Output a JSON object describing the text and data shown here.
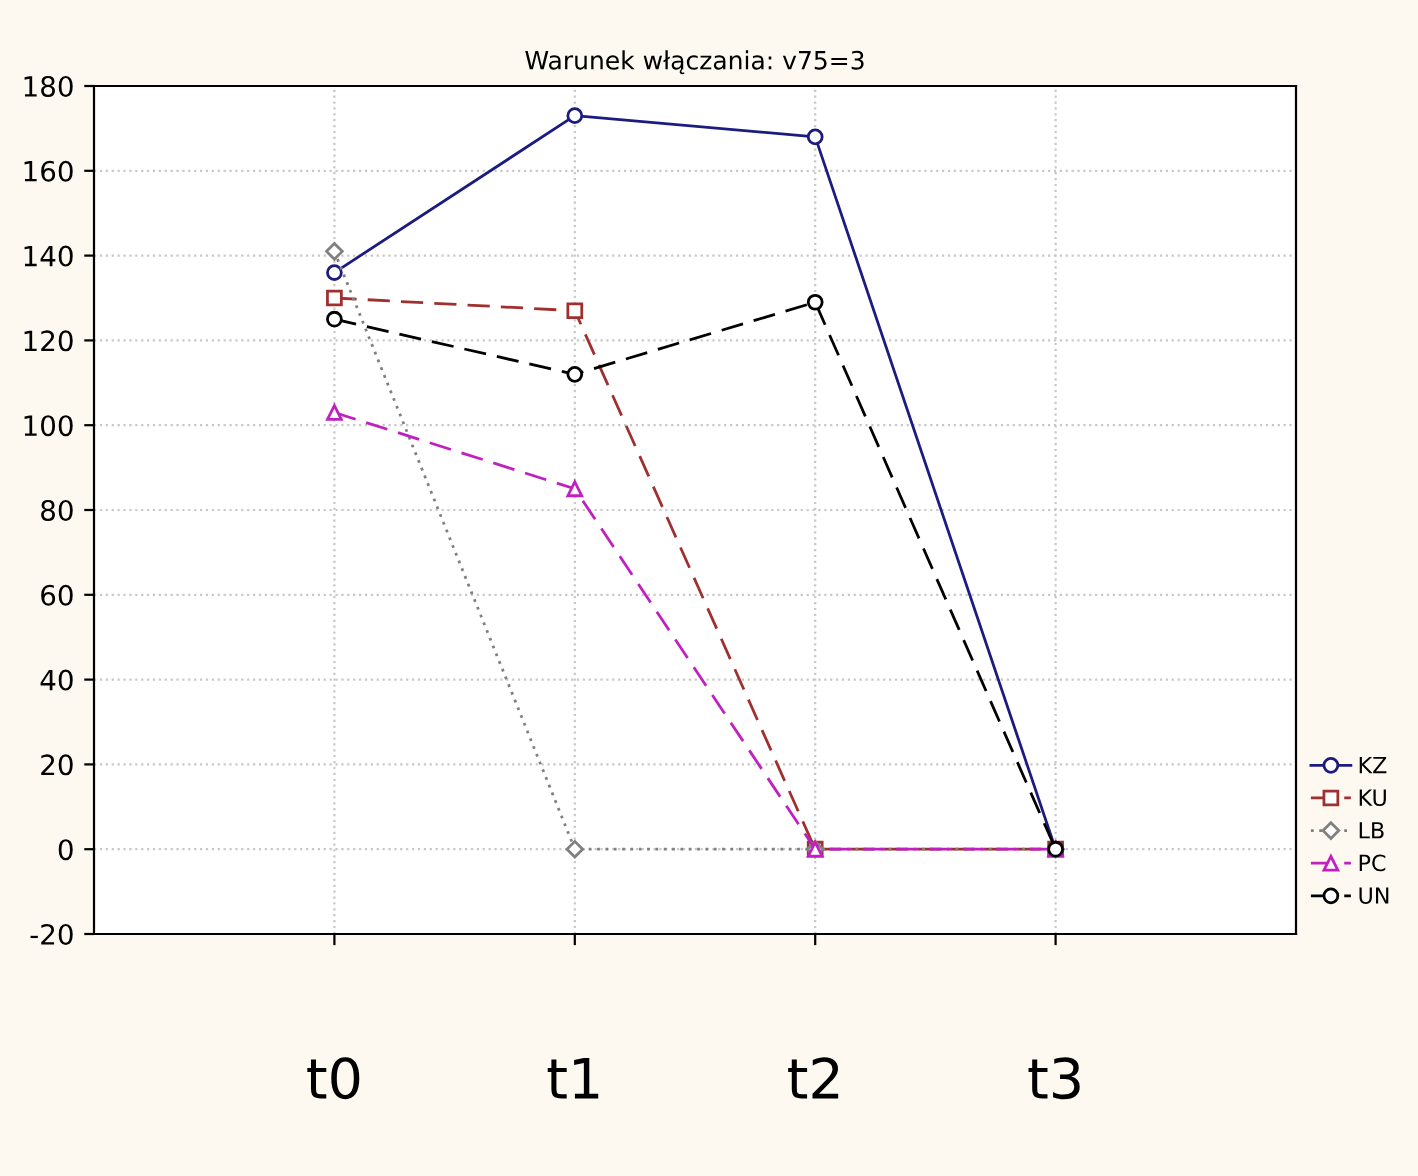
{
  "chart_data": {
    "type": "line",
    "title": "Warunek włączania: v75=3",
    "categories": [
      "t0",
      "t1",
      "t2",
      "t3"
    ],
    "series": [
      {
        "name": "KZ",
        "color": "#1c1c80",
        "values": [
          136,
          173,
          168,
          0
        ],
        "marker": "circle",
        "line_style": "solid"
      },
      {
        "name": "KU",
        "color": "#a03030",
        "values": [
          130,
          127,
          0,
          0
        ],
        "marker": "square",
        "line_style": "dashed"
      },
      {
        "name": "LB",
        "color": "#808080",
        "values": [
          141,
          0,
          0,
          0
        ],
        "marker": "diamond",
        "line_style": "dotted"
      },
      {
        "name": "PC",
        "color": "#c020c0",
        "values": [
          103,
          85,
          0,
          0
        ],
        "marker": "triangle",
        "line_style": "dashed"
      },
      {
        "name": "UN",
        "color": "#000000",
        "values": [
          125,
          112,
          129,
          0
        ],
        "marker": "circle",
        "line_style": "dashed"
      }
    ],
    "ylim": [
      -20,
      180
    ],
    "yticks": [
      -20,
      0,
      20,
      40,
      60,
      80,
      100,
      120,
      140,
      160,
      180
    ],
    "grid": true,
    "legend": "right"
  }
}
